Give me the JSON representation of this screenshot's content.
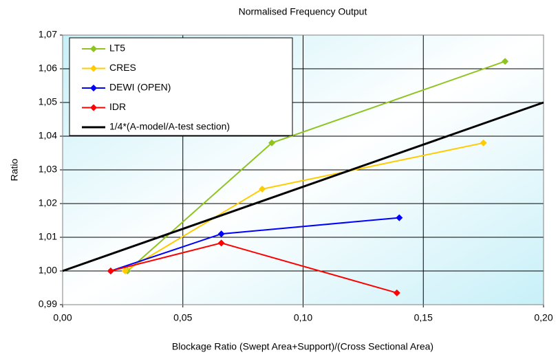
{
  "chart_data": {
    "type": "line",
    "title": "Normalised Frequency Output",
    "x_label": "Blockage Ratio (Swept Area+Support)/(Cross Sectional Area)",
    "y_label": "Ratio",
    "xlim": [
      0,
      0.2
    ],
    "ylim": [
      0.99,
      1.07
    ],
    "xticks": [
      {
        "value": 0,
        "label": "0,00"
      },
      {
        "value": 0.05,
        "label": "0,05"
      },
      {
        "value": 0.1,
        "label": "0,10"
      },
      {
        "value": 0.15,
        "label": "0,15"
      },
      {
        "value": 0.2,
        "label": "0,20"
      }
    ],
    "yticks": [
      {
        "value": 0.99,
        "label": "0,99"
      },
      {
        "value": 1.0,
        "label": "1,00"
      },
      {
        "value": 1.01,
        "label": "1,01"
      },
      {
        "value": 1.02,
        "label": "1,02"
      },
      {
        "value": 1.03,
        "label": "1,03"
      },
      {
        "value": 1.04,
        "label": "1,04"
      },
      {
        "value": 1.05,
        "label": "1,05"
      },
      {
        "value": 1.06,
        "label": "1,06"
      },
      {
        "value": 1.07,
        "label": "1,07"
      }
    ],
    "grid": true,
    "legend": "upper left",
    "series": [
      {
        "name": "LT5",
        "color": "#8fc31f",
        "markers": true,
        "x": [
          0.027,
          0.087,
          0.184
        ],
        "values": [
          1.0,
          1.038,
          1.0622
        ]
      },
      {
        "name": "CRES",
        "color": "#ffcc00",
        "markers": true,
        "x": [
          0.026,
          0.083,
          0.175
        ],
        "values": [
          1.0,
          1.0243,
          1.038
        ]
      },
      {
        "name": "DEWI (OPEN)",
        "color": "#0000ff",
        "markers": true,
        "x": [
          0.02,
          0.066,
          0.14
        ],
        "values": [
          1.0,
          1.011,
          1.0158
        ]
      },
      {
        "name": "IDR",
        "color": "#ff0000",
        "markers": true,
        "x": [
          0.02,
          0.066,
          0.139
        ],
        "values": [
          1.0,
          1.0083,
          0.9935
        ]
      },
      {
        "name": "1/4*(A-model/A-test section)",
        "color": "#000000",
        "markers": false,
        "x": [
          0,
          0.2
        ],
        "values": [
          1.0,
          1.05
        ]
      }
    ]
  }
}
